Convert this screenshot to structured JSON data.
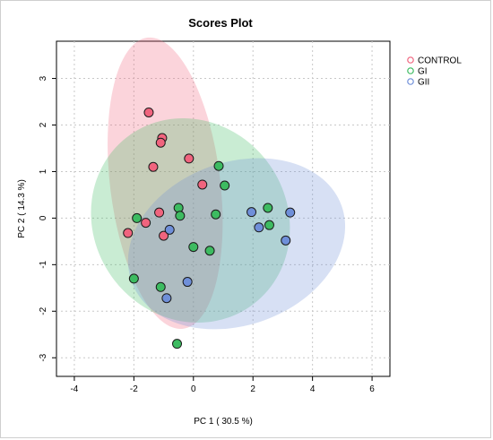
{
  "chart_data": {
    "type": "scatter",
    "title": "Scores Plot",
    "xlabel": "PC 1 ( 30.5 %)",
    "ylabel": "PC 2 ( 14.3 %)",
    "xlim": [
      -4.6,
      6.6
    ],
    "ylim": [
      -3.4,
      3.8
    ],
    "x_ticks": [
      -4,
      -2,
      0,
      2,
      4,
      6
    ],
    "y_ticks": [
      -3,
      -2,
      -1,
      0,
      1,
      2,
      3
    ],
    "x_tick_labels": [
      "-4",
      "-2",
      "0",
      "2",
      "4",
      "6"
    ],
    "y_tick_labels": [
      "-3",
      "-2",
      "-1",
      "0",
      "1",
      "2",
      "3"
    ],
    "grid": true,
    "legend_position": "top-right",
    "series": [
      {
        "name": "CONTROL",
        "color": "#f0647e",
        "ellipse": {
          "cx": -0.95,
          "cy": 0.75,
          "rx": 1.85,
          "ry": 3.15,
          "angle_deg": 7
        },
        "points": [
          {
            "x": -1.5,
            "y": 2.27
          },
          {
            "x": -1.05,
            "y": 1.72
          },
          {
            "x": -1.1,
            "y": 1.62
          },
          {
            "x": -0.15,
            "y": 1.28
          },
          {
            "x": -1.35,
            "y": 1.1
          },
          {
            "x": 0.3,
            "y": 0.72
          },
          {
            "x": -1.15,
            "y": 0.12
          },
          {
            "x": -1.6,
            "y": -0.1
          },
          {
            "x": -2.2,
            "y": -0.32
          },
          {
            "x": -1.0,
            "y": -0.38
          }
        ]
      },
      {
        "name": "GI",
        "color": "#3dbb61",
        "ellipse": {
          "cx": -0.1,
          "cy": -0.05,
          "rx": 3.25,
          "ry": 2.25,
          "angle_deg": 35
        },
        "points": [
          {
            "x": 0.85,
            "y": 1.12
          },
          {
            "x": 1.05,
            "y": 0.7
          },
          {
            "x": -0.5,
            "y": 0.22
          },
          {
            "x": -0.45,
            "y": 0.05
          },
          {
            "x": -1.9,
            "y": 0.0
          },
          {
            "x": 0.75,
            "y": 0.08
          },
          {
            "x": 2.5,
            "y": 0.22
          },
          {
            "x": 2.55,
            "y": -0.15
          },
          {
            "x": 0.0,
            "y": -0.62
          },
          {
            "x": 0.55,
            "y": -0.7
          },
          {
            "x": -2.0,
            "y": -1.3
          },
          {
            "x": -1.1,
            "y": -1.48
          },
          {
            "x": -0.55,
            "y": -2.7
          }
        ]
      },
      {
        "name": "GII",
        "color": "#6f8fd9",
        "ellipse": {
          "cx": 1.45,
          "cy": -0.55,
          "rx": 3.75,
          "ry": 1.75,
          "angle_deg": 20
        },
        "points": [
          {
            "x": 1.95,
            "y": 0.13
          },
          {
            "x": 3.25,
            "y": 0.12
          },
          {
            "x": 2.2,
            "y": -0.2
          },
          {
            "x": -0.8,
            "y": -0.25
          },
          {
            "x": 3.1,
            "y": -0.48
          },
          {
            "x": -0.2,
            "y": -1.37
          },
          {
            "x": -0.9,
            "y": -1.72
          }
        ]
      }
    ]
  }
}
